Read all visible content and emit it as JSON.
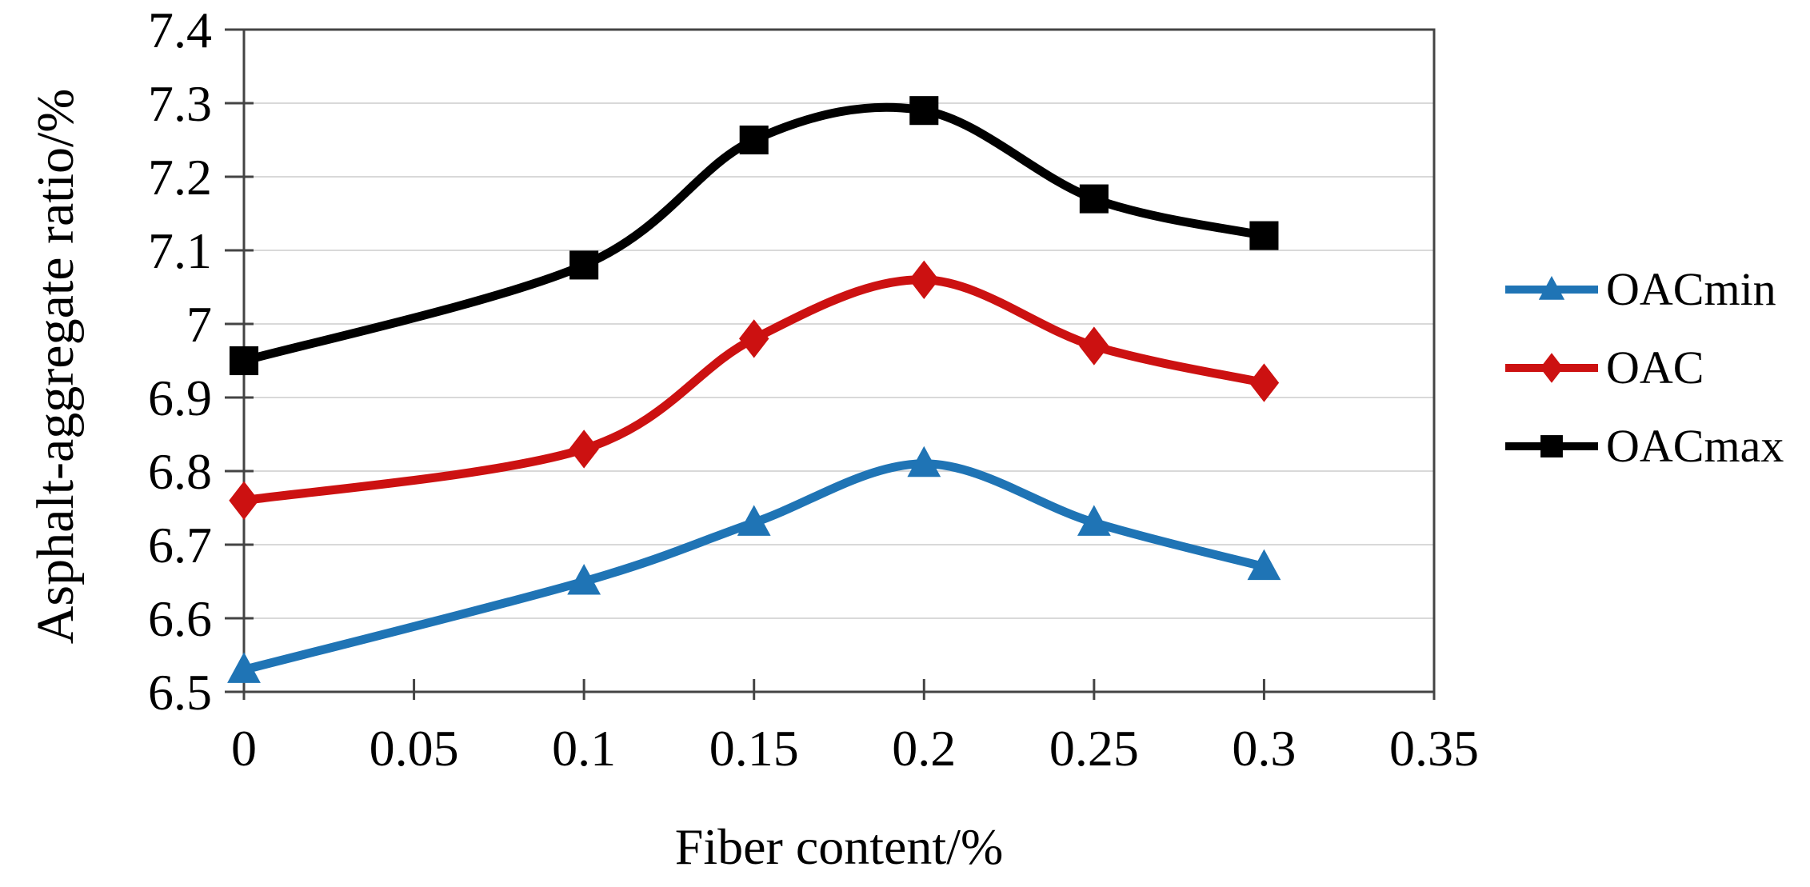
{
  "figure": {
    "background": "#ffffff",
    "border_color": "#444444",
    "gridline_color": "#d9d9d9",
    "text_color": "#000000"
  },
  "chart_data": {
    "type": "line",
    "title": "",
    "xlabel": "Fiber content/%",
    "ylabel": "Asphalt-aggregate ratio/%",
    "x": [
      0,
      0.1,
      0.15,
      0.2,
      0.25,
      0.3
    ],
    "series": [
      {
        "name": "OACmin",
        "color": "#1f74b5",
        "marker": "triangle",
        "values": [
          6.53,
          6.65,
          6.73,
          6.81,
          6.73,
          6.67
        ]
      },
      {
        "name": "OAC",
        "color": "#cc1111",
        "marker": "diamond",
        "values": [
          6.76,
          6.83,
          6.98,
          7.06,
          6.97,
          6.92
        ]
      },
      {
        "name": "OACmax",
        "color": "#000000",
        "marker": "square",
        "values": [
          6.95,
          7.08,
          7.25,
          7.29,
          7.17,
          7.12
        ]
      }
    ],
    "xlim": [
      0,
      0.35
    ],
    "ylim": [
      6.5,
      7.4
    ],
    "xticks": [
      0,
      0.05,
      0.1,
      0.15,
      0.2,
      0.25,
      0.3,
      0.35
    ],
    "xtick_labels": [
      "0",
      "0.05",
      "0.1",
      "0.15",
      "0.2",
      "0.25",
      "0.3",
      "0.35"
    ],
    "yticks": [
      6.5,
      6.6,
      6.7,
      6.8,
      6.9,
      7.0,
      7.1,
      7.2,
      7.3,
      7.4
    ],
    "ytick_labels": [
      "6.5",
      "6.6",
      "6.7",
      "6.8",
      "6.9",
      "7",
      "7.1",
      "7.2",
      "7.3",
      "7.4"
    ],
    "grid": "horizontal",
    "legend_position": "right",
    "smooth": true
  }
}
